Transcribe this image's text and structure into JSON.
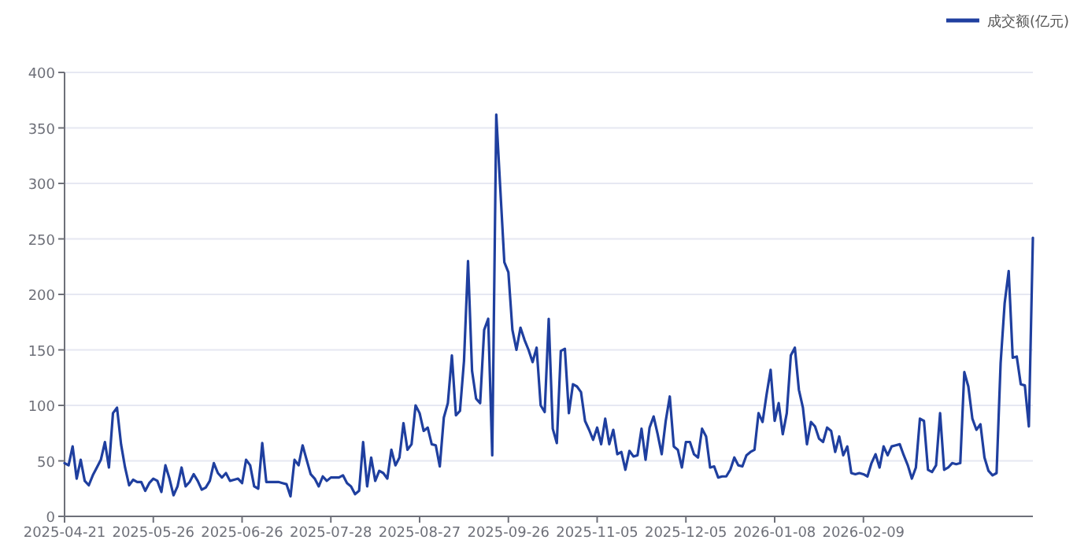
{
  "chart_data": {
    "type": "line",
    "categories": [
      "2025-04-21",
      null,
      null,
      null,
      null,
      null,
      null,
      null,
      null,
      null,
      null,
      null,
      null,
      null,
      null,
      null,
      null,
      null,
      null,
      null,
      null,
      null,
      "2025-05-26",
      null,
      null,
      null,
      null,
      null,
      null,
      null,
      null,
      null,
      null,
      null,
      null,
      null,
      null,
      null,
      null,
      null,
      null,
      null,
      null,
      null,
      "2025-06-26",
      null,
      null,
      null,
      null,
      null,
      null,
      null,
      null,
      null,
      null,
      null,
      null,
      null,
      null,
      null,
      null,
      null,
      null,
      null,
      null,
      null,
      "2025-07-28",
      null,
      null,
      null,
      null,
      null,
      null,
      null,
      null,
      null,
      null,
      null,
      null,
      null,
      null,
      null,
      null,
      null,
      null,
      null,
      null,
      null,
      "2025-08-27",
      null,
      null,
      null,
      null,
      null,
      null,
      null,
      null,
      null,
      null,
      null,
      null,
      null,
      null,
      null,
      null,
      null,
      null,
      null,
      null,
      null,
      "2025-09-26",
      null,
      null,
      null,
      null,
      null,
      null,
      null,
      null,
      null,
      null,
      null,
      null,
      null,
      null,
      null,
      null,
      null,
      null,
      null,
      null,
      null,
      "2025-11-05",
      null,
      null,
      null,
      null,
      null,
      null,
      null,
      null,
      null,
      null,
      null,
      null,
      null,
      null,
      null,
      null,
      null,
      null,
      null,
      null,
      null,
      "2025-12-05",
      null,
      null,
      null,
      null,
      null,
      null,
      null,
      null,
      null,
      null,
      null,
      null,
      null,
      null,
      null,
      null,
      null,
      null,
      null,
      null,
      null,
      "2026-01-08",
      null,
      null,
      null,
      null,
      null,
      null,
      null,
      null,
      null,
      null,
      null,
      null,
      null,
      null,
      null,
      null,
      null,
      null,
      null,
      null,
      null,
      "2026-02-09",
      null,
      null,
      null,
      null,
      null,
      null,
      null,
      null,
      null,
      null,
      null,
      null,
      null,
      null,
      null,
      null,
      null,
      null,
      null,
      null,
      null,
      null,
      null,
      null,
      null,
      null,
      null,
      null,
      null,
      null,
      null,
      null,
      null,
      null,
      null,
      null,
      null,
      null,
      null,
      null,
      null,
      null
    ],
    "series": [
      {
        "name": "成交额(亿元)",
        "color": "#1f3f9f",
        "values": [
          48,
          46,
          63,
          34,
          51,
          32,
          28,
          37,
          44,
          51,
          67,
          44,
          93,
          98,
          65,
          44,
          28,
          33,
          31,
          31,
          23,
          30,
          34,
          32,
          22,
          46,
          34,
          19,
          27,
          44,
          27,
          31,
          38,
          32,
          24,
          26,
          32,
          48,
          39,
          35,
          39,
          32,
          33,
          34,
          30,
          51,
          46,
          27,
          25,
          66,
          31,
          31,
          31,
          31,
          30,
          29,
          18,
          51,
          46,
          64,
          51,
          38,
          34,
          27,
          36,
          32,
          35,
          35,
          35,
          37,
          30,
          27,
          20,
          23,
          67,
          27,
          53,
          32,
          41,
          39,
          34,
          60,
          46,
          53,
          84,
          60,
          65,
          100,
          93,
          77,
          80,
          65,
          64,
          45,
          89,
          102,
          145,
          91,
          95,
          140,
          230,
          131,
          106,
          102,
          168,
          178,
          55,
          362,
          295,
          229,
          220,
          168,
          150,
          170,
          159,
          150,
          139,
          152,
          100,
          94,
          178,
          79,
          66,
          149,
          151,
          93,
          119,
          117,
          112,
          86,
          78,
          69,
          80,
          65,
          88,
          65,
          78,
          56,
          58,
          42,
          59,
          54,
          55,
          79,
          51,
          80,
          90,
          74,
          56,
          86,
          108,
          63,
          60,
          44,
          67,
          67,
          56,
          53,
          79,
          72,
          44,
          45,
          35,
          36,
          36,
          42,
          53,
          46,
          45,
          55,
          58,
          60,
          93,
          85,
          110,
          132,
          86,
          102,
          74,
          93,
          145,
          152,
          114,
          98,
          65,
          85,
          81,
          70,
          67,
          80,
          77,
          58,
          72,
          55,
          63,
          39,
          38,
          39,
          38,
          36,
          48,
          56,
          44,
          63,
          55,
          63,
          64,
          65,
          55,
          46,
          34,
          44,
          88,
          86,
          42,
          40,
          46,
          93,
          42,
          44,
          48,
          47,
          48,
          130,
          117,
          88,
          78,
          83,
          53,
          41,
          37,
          39,
          138,
          192,
          221,
          143,
          144,
          119,
          118,
          81,
          251
        ]
      }
    ],
    "ylim": [
      0,
      400
    ],
    "yticks": [
      0,
      50,
      100,
      150,
      200,
      250,
      300,
      350,
      400
    ],
    "grid": "y",
    "legend": "top right",
    "marker": "none",
    "line_style": "solid"
  }
}
